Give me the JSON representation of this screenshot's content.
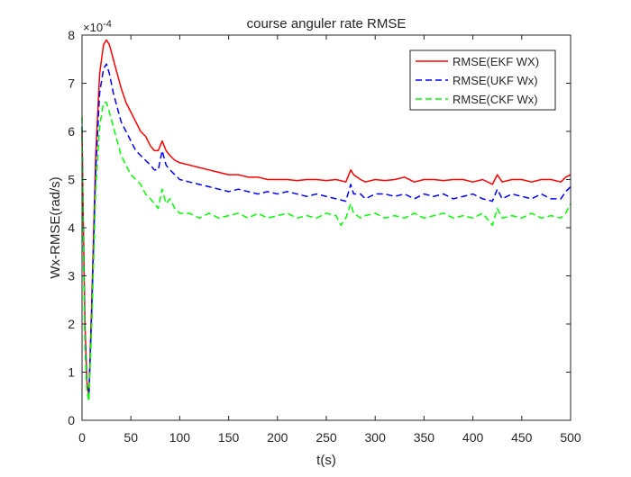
{
  "chart_data": {
    "type": "line",
    "title": "course anguler rate RMSE",
    "xlabel": "t(s)",
    "ylabel": "Wx-RMSE(rad/s)",
    "exponent_label": "×10",
    "exponent_power": "-4",
    "xlim": [
      0,
      500
    ],
    "ylim": [
      0,
      8
    ],
    "xticks": [
      0,
      50,
      100,
      150,
      200,
      250,
      300,
      350,
      400,
      450,
      500
    ],
    "yticks": [
      0,
      1,
      2,
      3,
      4,
      5,
      6,
      7,
      8
    ],
    "grid": false,
    "legend_position": "top-right",
    "series": [
      {
        "name": "RMSE(EKF WX)",
        "color": "#ff0000",
        "dash": "solid",
        "x": [
          0,
          1,
          3,
          5,
          7,
          10,
          14,
          18,
          22,
          25,
          28,
          32,
          36,
          40,
          45,
          50,
          55,
          60,
          65,
          70,
          74,
          78,
          82,
          86,
          90,
          95,
          100,
          110,
          120,
          130,
          140,
          150,
          160,
          170,
          180,
          190,
          200,
          210,
          220,
          230,
          240,
          250,
          260,
          270,
          275,
          278,
          285,
          290,
          300,
          310,
          320,
          330,
          340,
          350,
          360,
          370,
          380,
          390,
          400,
          410,
          420,
          425,
          430,
          440,
          450,
          460,
          470,
          480,
          490,
          495,
          500
        ],
        "y": [
          6.0,
          4.5,
          2.0,
          0.8,
          0.5,
          2.5,
          5.5,
          7.2,
          7.8,
          7.9,
          7.8,
          7.5,
          7.2,
          6.9,
          6.6,
          6.4,
          6.2,
          6.0,
          5.9,
          5.7,
          5.6,
          5.6,
          5.8,
          5.6,
          5.5,
          5.4,
          5.35,
          5.3,
          5.25,
          5.2,
          5.15,
          5.1,
          5.1,
          5.05,
          5.05,
          5.0,
          5.0,
          5.0,
          4.98,
          5.0,
          5.0,
          4.98,
          5.0,
          4.95,
          5.2,
          5.1,
          5.0,
          4.95,
          5.0,
          4.98,
          5.0,
          5.05,
          4.95,
          5.0,
          5.0,
          4.98,
          5.0,
          5.0,
          4.95,
          5.0,
          4.9,
          5.1,
          4.95,
          5.0,
          5.0,
          4.95,
          5.0,
          5.0,
          4.95,
          5.05,
          5.1
        ]
      },
      {
        "name": "RMSE(UKF Wx)",
        "color": "#0000ff",
        "dash": "dashed",
        "x": [
          0,
          1,
          3,
          5,
          7,
          10,
          14,
          18,
          22,
          25,
          28,
          32,
          36,
          40,
          45,
          50,
          55,
          60,
          65,
          70,
          74,
          78,
          82,
          86,
          90,
          95,
          100,
          110,
          120,
          130,
          140,
          150,
          160,
          170,
          180,
          190,
          200,
          210,
          220,
          230,
          240,
          250,
          260,
          270,
          275,
          278,
          285,
          290,
          300,
          310,
          320,
          330,
          340,
          350,
          360,
          370,
          380,
          390,
          400,
          410,
          420,
          425,
          430,
          440,
          450,
          460,
          470,
          480,
          490,
          495,
          500
        ],
        "y": [
          6.1,
          4.3,
          1.8,
          0.7,
          0.45,
          2.3,
          5.2,
          6.8,
          7.3,
          7.4,
          7.2,
          6.8,
          6.5,
          6.2,
          6.0,
          5.8,
          5.6,
          5.5,
          5.4,
          5.3,
          5.2,
          5.2,
          5.6,
          5.3,
          5.2,
          5.1,
          5.0,
          4.95,
          4.9,
          4.85,
          4.8,
          4.75,
          4.8,
          4.75,
          4.7,
          4.75,
          4.7,
          4.75,
          4.7,
          4.65,
          4.7,
          4.65,
          4.6,
          4.55,
          4.9,
          4.7,
          4.7,
          4.6,
          4.7,
          4.7,
          4.65,
          4.7,
          4.6,
          4.7,
          4.65,
          4.7,
          4.6,
          4.65,
          4.7,
          4.6,
          4.55,
          4.8,
          4.6,
          4.7,
          4.65,
          4.6,
          4.7,
          4.6,
          4.6,
          4.75,
          4.85
        ]
      },
      {
        "name": "RMSE(CKF Wx)",
        "color": "#00ff00",
        "dash": "dashed",
        "x": [
          0,
          1,
          3,
          5,
          7,
          10,
          14,
          18,
          22,
          25,
          28,
          32,
          36,
          40,
          45,
          50,
          55,
          60,
          65,
          70,
          74,
          78,
          82,
          86,
          90,
          95,
          100,
          110,
          120,
          130,
          140,
          150,
          160,
          170,
          180,
          190,
          200,
          210,
          220,
          230,
          240,
          250,
          260,
          265,
          270,
          275,
          278,
          285,
          290,
          300,
          310,
          320,
          330,
          340,
          350,
          360,
          370,
          380,
          390,
          400,
          410,
          420,
          425,
          430,
          440,
          450,
          460,
          470,
          480,
          490,
          495,
          500
        ],
        "y": [
          6.3,
          4.0,
          1.5,
          0.6,
          0.4,
          2.0,
          4.8,
          6.1,
          6.6,
          6.6,
          6.4,
          6.1,
          5.8,
          5.5,
          5.3,
          5.1,
          5.0,
          4.9,
          4.7,
          4.6,
          4.5,
          4.4,
          4.8,
          4.5,
          4.6,
          4.4,
          4.3,
          4.3,
          4.2,
          4.3,
          4.2,
          4.25,
          4.3,
          4.2,
          4.3,
          4.2,
          4.25,
          4.3,
          4.2,
          4.25,
          4.2,
          4.3,
          4.25,
          4.05,
          4.2,
          4.5,
          4.3,
          4.2,
          4.25,
          4.3,
          4.2,
          4.25,
          4.2,
          4.3,
          4.2,
          4.25,
          4.3,
          4.2,
          4.25,
          4.2,
          4.3,
          4.05,
          4.4,
          4.2,
          4.25,
          4.2,
          4.3,
          4.2,
          4.25,
          4.2,
          4.3,
          4.5
        ]
      }
    ]
  }
}
